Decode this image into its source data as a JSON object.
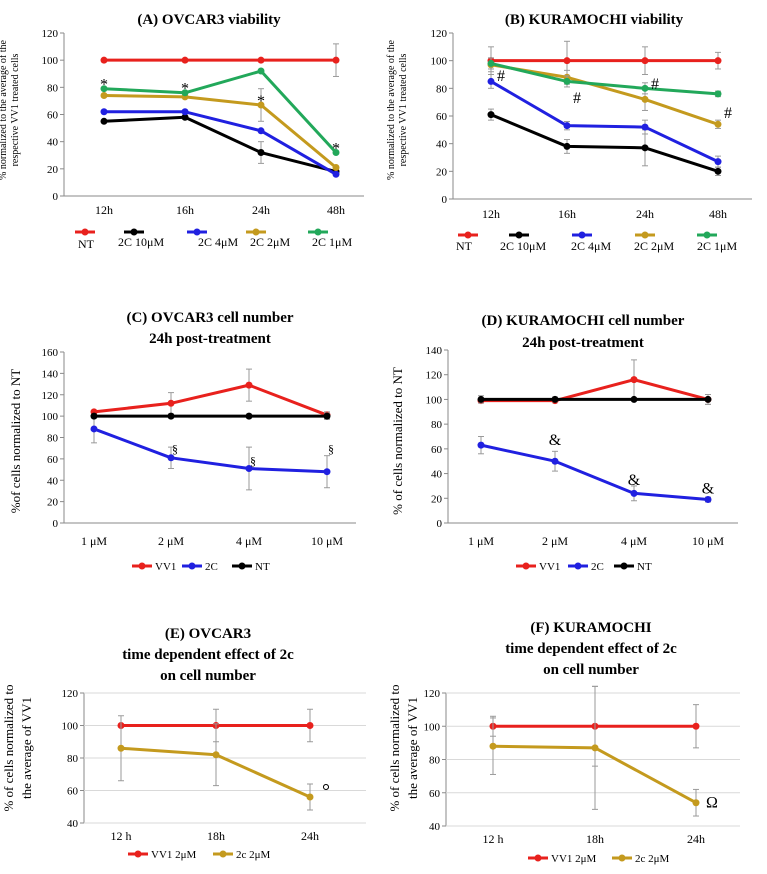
{
  "chart_data": [
    {
      "id": "A",
      "type": "line",
      "title": "(A) OVCAR3 viability",
      "ylabel": [
        "% normalized  to the average of the",
        "respective VV1 treated cells"
      ],
      "categories": [
        "12h",
        "16h",
        "24h",
        "48h"
      ],
      "ylim": [
        0,
        120
      ],
      "yticks": [
        0,
        20,
        40,
        60,
        80,
        100,
        120
      ],
      "series": [
        {
          "name": "NT",
          "color": "#e8211d",
          "values": [
            100,
            100,
            100,
            100
          ],
          "err": [
            0,
            0,
            0,
            12
          ]
        },
        {
          "name": "2C 10μM",
          "color": "#000000",
          "values": [
            55,
            58,
            32,
            18
          ],
          "err": [
            0,
            0,
            8,
            0
          ]
        },
        {
          "name": "2C 4μM",
          "color": "#2020e0",
          "values": [
            62,
            62,
            48,
            16
          ],
          "err": [
            0,
            0,
            0,
            0
          ]
        },
        {
          "name": "2C 2μM",
          "color": "#c49a1e",
          "values": [
            74,
            73,
            67,
            21
          ],
          "err": [
            0,
            0,
            12,
            0
          ]
        },
        {
          "name": "2C 1μM",
          "color": "#22a85a",
          "values": [
            79,
            76,
            92,
            32
          ],
          "err": [
            0,
            0,
            0,
            0
          ]
        }
      ],
      "annotations": [
        {
          "text": "*",
          "xi": 0,
          "y": 82
        },
        {
          "text": "*",
          "xi": 1,
          "y": 79
        },
        {
          "text": "*",
          "xi": 2,
          "y": 70
        },
        {
          "text": "*",
          "xi": 3,
          "y": 35
        }
      ]
    },
    {
      "id": "B",
      "type": "line",
      "title": "(B) KURAMOCHI viability",
      "ylabel": [
        "% normalized to the average of the",
        "respective VV1 treated cells"
      ],
      "categories": [
        "12h",
        "16h",
        "24h",
        "48h"
      ],
      "ylim": [
        0,
        120
      ],
      "yticks": [
        0,
        20,
        40,
        60,
        80,
        100,
        120
      ],
      "series": [
        {
          "name": "NT",
          "color": "#e8211d",
          "values": [
            100,
            100,
            100,
            100
          ],
          "err": [
            10,
            14,
            10,
            6
          ]
        },
        {
          "name": "2C 10μM",
          "color": "#000000",
          "values": [
            61,
            38,
            37,
            20
          ],
          "err": [
            4,
            5,
            13,
            3
          ]
        },
        {
          "name": "2C 4μM",
          "color": "#2020e0",
          "values": [
            85,
            53,
            52,
            27
          ],
          "err": [
            5,
            3,
            5,
            4
          ]
        },
        {
          "name": "2C 2μM",
          "color": "#c49a1e",
          "values": [
            97,
            88,
            72,
            54
          ],
          "err": [
            5,
            5,
            8,
            3
          ]
        },
        {
          "name": "2C 1μM",
          "color": "#22a85a",
          "values": [
            98,
            85,
            80,
            76
          ],
          "err": [
            4,
            4,
            4,
            2
          ]
        }
      ],
      "annotations": [
        {
          "text": "#",
          "xi": 0,
          "y": 89
        },
        {
          "text": "#",
          "xi": 1,
          "y": 73
        },
        {
          "text": "#",
          "xi": 2,
          "y": 83
        },
        {
          "text": "#",
          "xi": 3,
          "y": 62
        }
      ]
    },
    {
      "id": "C",
      "type": "line",
      "title": [
        "(C) OVCAR3 cell number",
        "24h post-treatment"
      ],
      "ylabel": [
        "%of cells  normalized to NT"
      ],
      "categories": [
        "1 μM",
        "2 μM",
        "4 μM",
        "10 μM"
      ],
      "ylim": [
        0,
        160
      ],
      "yticks": [
        0,
        20,
        40,
        60,
        80,
        100,
        120,
        140,
        160
      ],
      "series": [
        {
          "name": "VV1",
          "color": "#e8211d",
          "values": [
            104,
            112,
            129,
            101
          ],
          "err": [
            0,
            10,
            15,
            3
          ]
        },
        {
          "name": "2C",
          "color": "#2020e0",
          "values": [
            88,
            61,
            51,
            48
          ],
          "err": [
            13,
            10,
            20,
            15
          ]
        },
        {
          "name": "NT",
          "color": "#000000",
          "values": [
            100,
            100,
            100,
            100
          ],
          "err": [
            0,
            0,
            0,
            3
          ]
        }
      ],
      "annotations": [
        {
          "text": "§",
          "xi": 1,
          "y": 70
        },
        {
          "text": "§",
          "xi": 2,
          "y": 59
        },
        {
          "text": "§",
          "xi": 3,
          "y": 70
        }
      ]
    },
    {
      "id": "D",
      "type": "line",
      "title": [
        "(D) KURAMOCHI cell number",
        "24h post-treatment"
      ],
      "ylabel": [
        "% of cells  normalized to NT"
      ],
      "categories": [
        "1 μM",
        "2 μM",
        "4 μM",
        "10 μM"
      ],
      "ylim": [
        0,
        140
      ],
      "yticks": [
        0,
        20,
        40,
        60,
        80,
        100,
        120,
        140
      ],
      "series": [
        {
          "name": "VV1",
          "color": "#e8211d",
          "values": [
            99,
            99,
            116,
            100
          ],
          "err": [
            0,
            0,
            16,
            4
          ]
        },
        {
          "name": "2C",
          "color": "#2020e0",
          "values": [
            63,
            50,
            24,
            19
          ],
          "err": [
            7,
            8,
            6,
            2
          ]
        },
        {
          "name": "NT",
          "color": "#000000",
          "values": [
            100,
            100,
            100,
            100
          ],
          "err": [
            3,
            2,
            0,
            4
          ]
        }
      ],
      "annotations": [
        {
          "text": "&",
          "xi": 1,
          "y": 67
        },
        {
          "text": "&",
          "xi": 2,
          "y": 35
        },
        {
          "text": "&",
          "xi": 3,
          "y": 28
        }
      ]
    },
    {
      "id": "E",
      "type": "line",
      "title": [
        "(E) OVCAR3",
        "time dependent effect of 2c",
        "on cell number"
      ],
      "ylabel": [
        "% of cells normalized to",
        "the average of  VV1"
      ],
      "categories": [
        "12 h",
        "18h",
        "24h"
      ],
      "ylim": [
        40,
        120
      ],
      "yticks": [
        40,
        60,
        80,
        100,
        120
      ],
      "series": [
        {
          "name": "VV1 2μM",
          "color": "#e8211d",
          "values": [
            100,
            100,
            100
          ],
          "err": [
            0,
            10,
            10
          ]
        },
        {
          "name": "2c 2μM",
          "color": "#c49a1e",
          "values": [
            86,
            82,
            56
          ],
          "err": [
            20,
            19,
            8
          ]
        }
      ],
      "annotations": [
        {
          "text": "°",
          "xi": 2,
          "y": 57
        }
      ]
    },
    {
      "id": "F",
      "type": "line",
      "title": [
        "(F) KURAMOCHI",
        "time dependent effect of 2c",
        "on cell number"
      ],
      "ylabel": [
        "% of cells normalized to",
        "the average of  VV1"
      ],
      "categories": [
        "12 h",
        "18h",
        "24h"
      ],
      "ylim": [
        40,
        120
      ],
      "yticks": [
        40,
        60,
        80,
        100,
        120
      ],
      "series": [
        {
          "name": "VV1 2μM",
          "color": "#e8211d",
          "values": [
            100,
            100,
            100
          ],
          "err": [
            6,
            24,
            13
          ]
        },
        {
          "name": "2c 2μM",
          "color": "#c49a1e",
          "values": [
            88,
            87,
            54
          ],
          "err": [
            17,
            37,
            8
          ]
        }
      ],
      "annotations": [
        {
          "text": "Ω",
          "xi": 2,
          "y": 54
        }
      ]
    }
  ]
}
